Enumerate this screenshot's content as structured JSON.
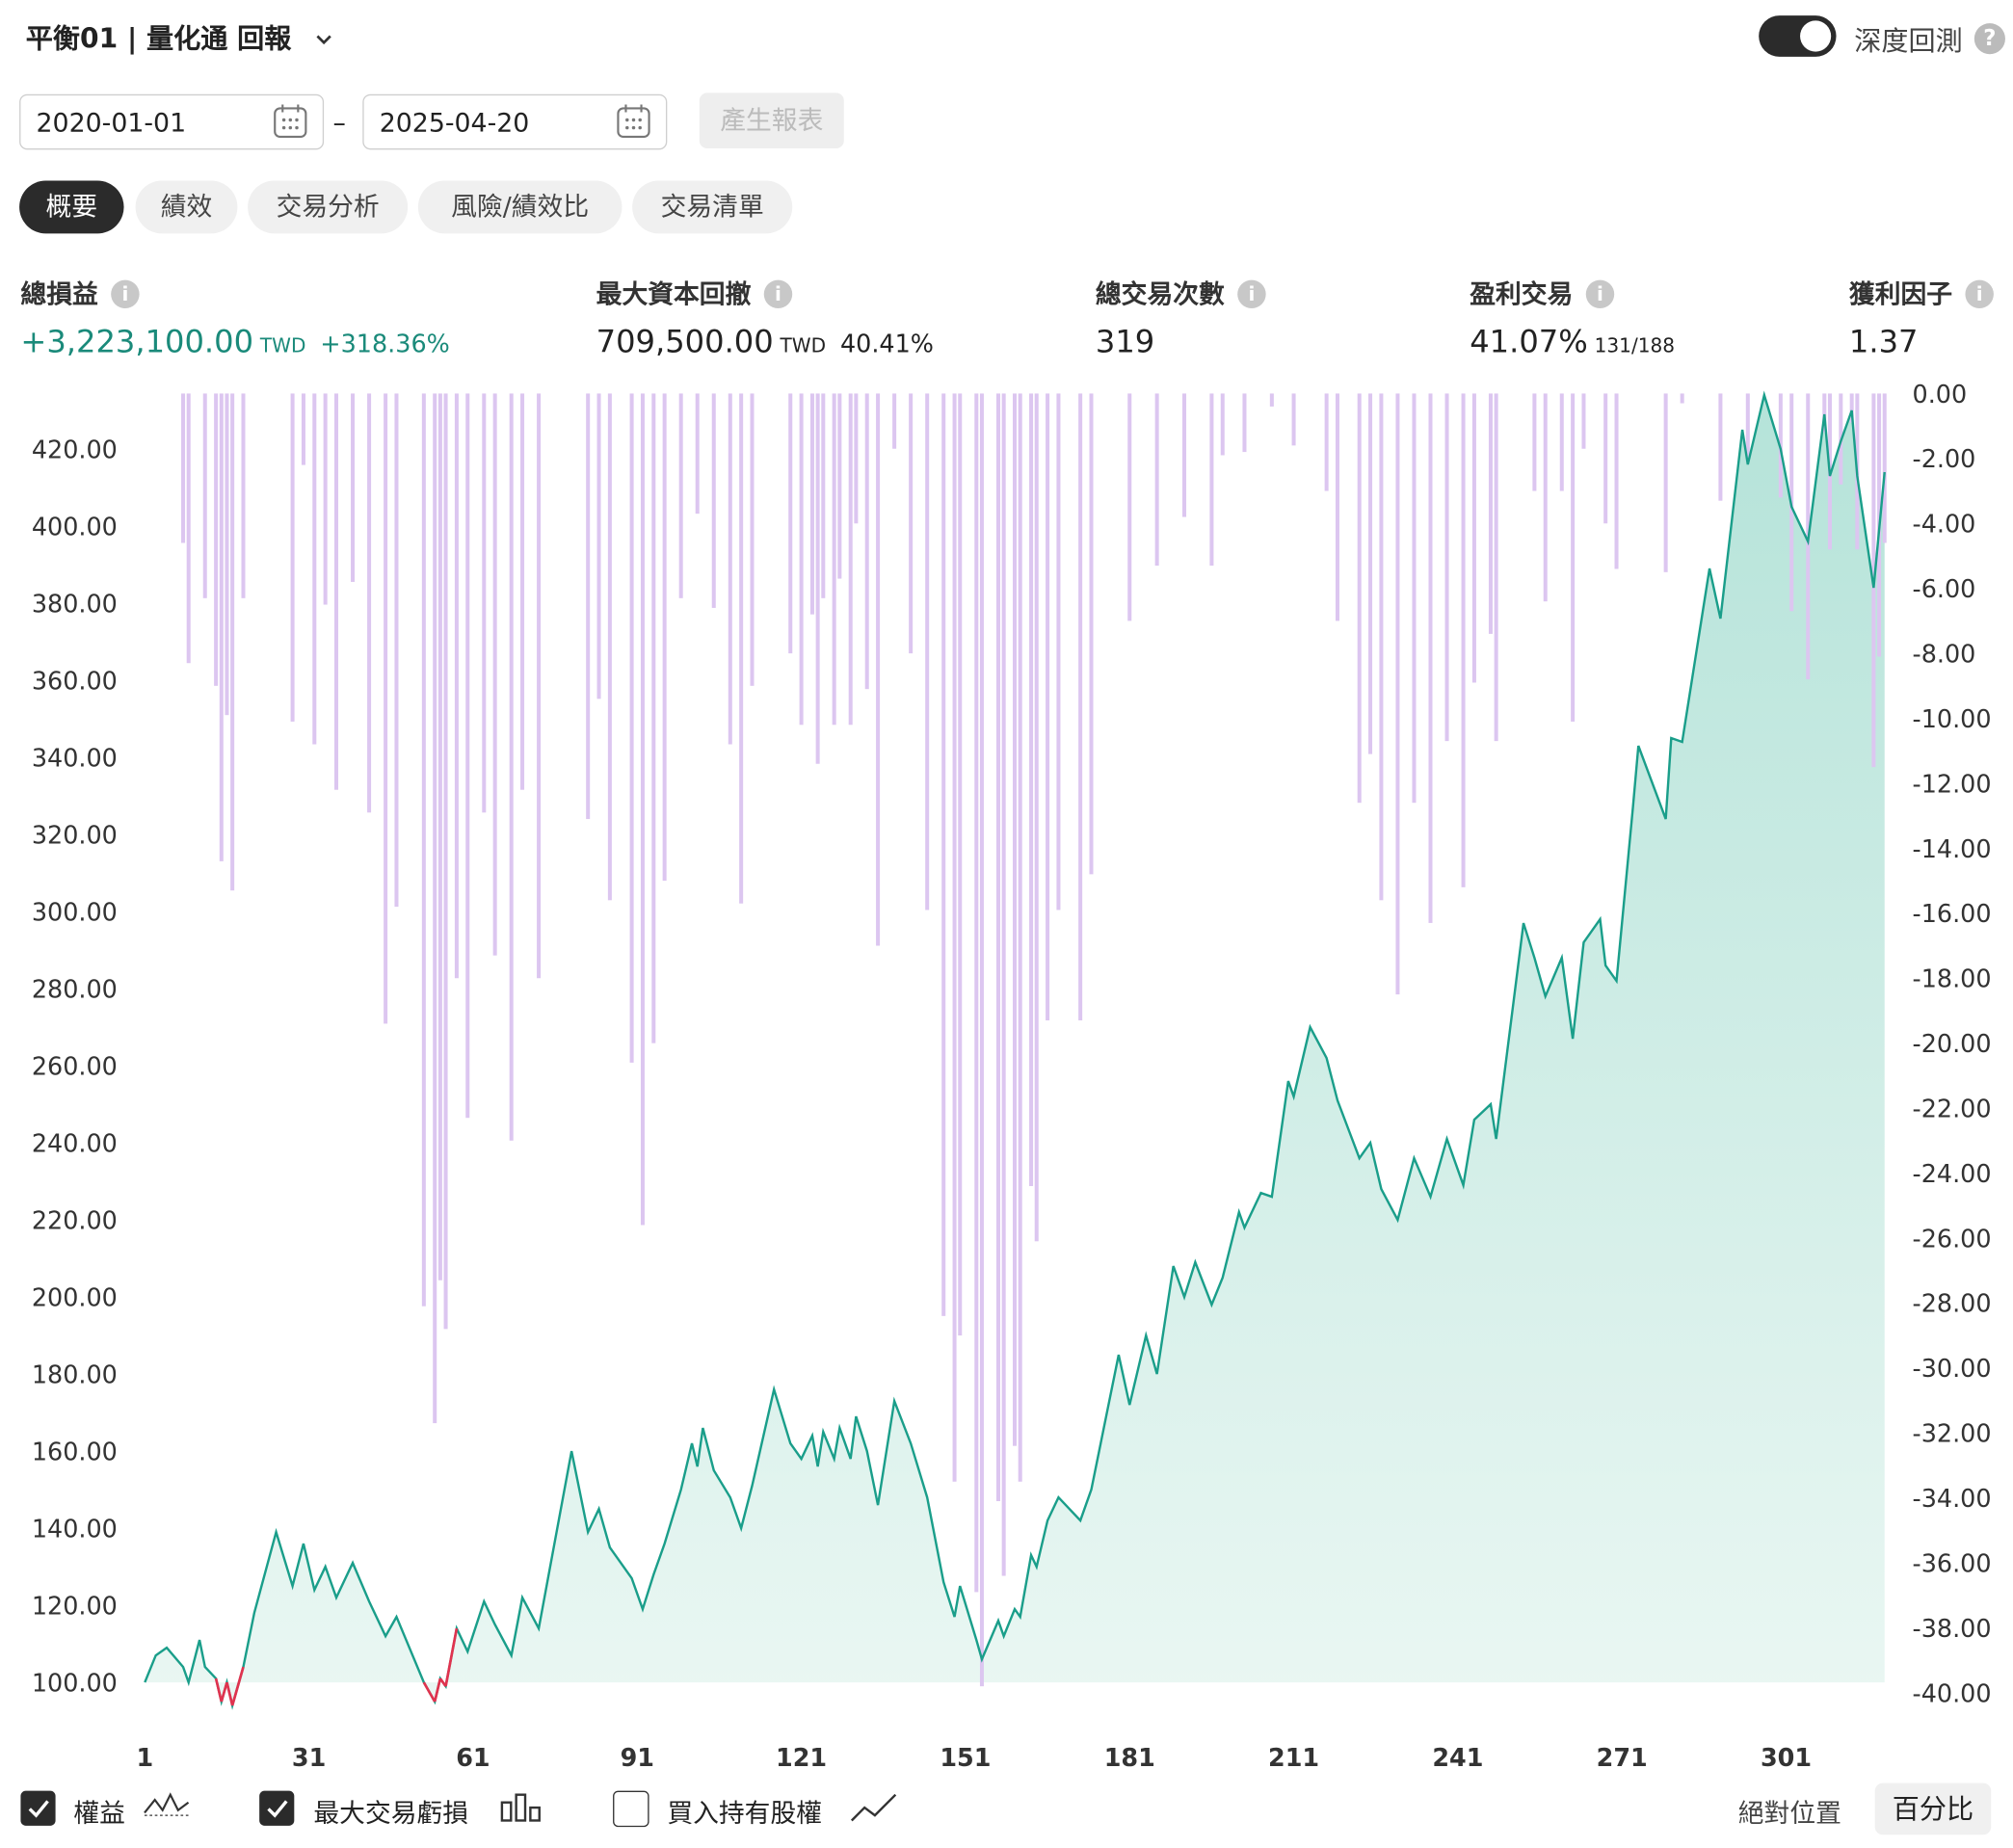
{
  "header": {
    "title": "平衡01 | 量化通 回報",
    "toggle_label": "深度回測",
    "toggle_on": true
  },
  "controls": {
    "start_date": "2020-01-01",
    "separator": "–",
    "end_date": "2025-04-20",
    "button": "產生報表"
  },
  "tabs": [
    "概要",
    "績效",
    "交易分析",
    "風險/績效比",
    "交易清單"
  ],
  "stats": [
    {
      "label": "總損益",
      "value": "+3,223,100.00",
      "unit": "TWD",
      "extra": "+318.36%"
    },
    {
      "label": "最大資本回撤",
      "value": "709,500.00",
      "unit": "TWD",
      "extra": "40.41%"
    },
    {
      "label": "總交易次數",
      "value": "319"
    },
    {
      "label": "盈利交易",
      "value": "41.07%",
      "extra": "131/188"
    },
    {
      "label": "獲利因子",
      "value": "1.37"
    }
  ],
  "legend_extra": {
    "label": "買入持有股權",
    "checked": false
  },
  "view_modes": [
    "絕對位置",
    "百分比"
  ],
  "chart_data": {
    "type": "line",
    "x": [
      1,
      3,
      5,
      8,
      9,
      11,
      12,
      14,
      15,
      16,
      17,
      19,
      21,
      25,
      28,
      30,
      32,
      34,
      36,
      39,
      42,
      45,
      47,
      52,
      54,
      55,
      56,
      58,
      60,
      63,
      65,
      68,
      70,
      73,
      79,
      82,
      84,
      86,
      90,
      92,
      94,
      96,
      99,
      101,
      102,
      103,
      105,
      108,
      110,
      112,
      116,
      119,
      121,
      123,
      124,
      125,
      127,
      128,
      130,
      131,
      133,
      135,
      138,
      141,
      144,
      147,
      149,
      150,
      153,
      154,
      157,
      158,
      160,
      161,
      163,
      164,
      166,
      168,
      172,
      174,
      179,
      181,
      184,
      186,
      189,
      191,
      193,
      196,
      198,
      201,
      202,
      205,
      207,
      210,
      211,
      214,
      217,
      219,
      223,
      225,
      227,
      230,
      233,
      236,
      239,
      242,
      244,
      247,
      248,
      253,
      255,
      257,
      260,
      262,
      264,
      267,
      268,
      270,
      273,
      274,
      279,
      280,
      282,
      287,
      289,
      293,
      294,
      297,
      300,
      302,
      305,
      308,
      309,
      311,
      313,
      314,
      317,
      318,
      319
    ],
    "series": [
      {
        "name": "權益",
        "type": "line",
        "color": "#1a9e8a",
        "negative_color": "#e0334f",
        "checked": true,
        "values": [
          100,
          107,
          109,
          104,
          100,
          111,
          104,
          101,
          95,
          100,
          94,
          104,
          118,
          139,
          125,
          136,
          124,
          130,
          122,
          131,
          121,
          112,
          117,
          100,
          95,
          101,
          99,
          114,
          108,
          121,
          115,
          107,
          122,
          114,
          160,
          139,
          145,
          135,
          127,
          119,
          128,
          136,
          150,
          162,
          156,
          166,
          155,
          148,
          140,
          151,
          176,
          162,
          158,
          164,
          156,
          165,
          158,
          166,
          158,
          169,
          160,
          146,
          173,
          162,
          148,
          126,
          117,
          125,
          111,
          106,
          116,
          112,
          119,
          117,
          133,
          130,
          142,
          148,
          142,
          150,
          185,
          172,
          190,
          180,
          208,
          200,
          209,
          198,
          205,
          222,
          218,
          227,
          226,
          256,
          252,
          270,
          262,
          251,
          236,
          240,
          228,
          220,
          236,
          226,
          241,
          229,
          246,
          250,
          241,
          297,
          288,
          278,
          288,
          267,
          292,
          298,
          286,
          282,
          327,
          343,
          324,
          345,
          344,
          389,
          376,
          425,
          416,
          434,
          420,
          405,
          396,
          429,
          413,
          422,
          430,
          413,
          384,
          399,
          414
        ]
      },
      {
        "name": "最大交易虧損",
        "type": "bar",
        "axis": "y2",
        "color": "#dcc6f0",
        "checked": true,
        "values": [
          0,
          0,
          0,
          -4.6,
          -8.3,
          0,
          -6.3,
          -9,
          -14.4,
          -9.9,
          -15.3,
          -6.3,
          0,
          0,
          -10.1,
          -2.2,
          -10.8,
          -6.5,
          -12.2,
          -5.8,
          -12.9,
          -19.4,
          -15.8,
          -28.1,
          -31.7,
          -27.3,
          -28.8,
          -18,
          -22.3,
          -12.9,
          -17.3,
          -23,
          -12.2,
          -18,
          0,
          -13.1,
          -9.4,
          -15.6,
          -20.6,
          -25.6,
          -20,
          -15,
          -6.3,
          0,
          -3.7,
          0,
          -6.6,
          -10.8,
          -15.7,
          -9,
          0,
          -8,
          -10.2,
          -6.8,
          -11.4,
          -6.3,
          -10.2,
          -5.7,
          -10.2,
          -4,
          -9.1,
          -17,
          -1.7,
          -8,
          -15.9,
          -28.4,
          -33.5,
          -29,
          -36.9,
          -39.8,
          -34.1,
          -36.4,
          -32.4,
          -33.5,
          -24.4,
          -26.1,
          -19.3,
          -15.9,
          -19.3,
          -14.8,
          0,
          -7,
          0,
          -5.3,
          0,
          -3.8,
          0,
          -5.3,
          -1.9,
          0,
          -1.8,
          0,
          -0.4,
          0,
          -1.6,
          0,
          -3,
          -7,
          -12.6,
          -11.1,
          -15.6,
          -18.5,
          -12.6,
          -16.3,
          -10.7,
          -15.2,
          -8.9,
          -7.4,
          -10.7,
          0,
          -3,
          -6.4,
          -3,
          -10.1,
          -1.7,
          0,
          -4,
          -5.4,
          0,
          0,
          -5.5,
          0,
          -0.3,
          0,
          -3.3,
          0,
          -2.1,
          0,
          -3.2,
          -6.7,
          -8.8,
          -1.2,
          -4.8,
          -2.8,
          -0.9,
          -4.8,
          -11.5,
          -8.1,
          -4.6
        ]
      }
    ],
    "xlim": [
      0,
      320.3
    ],
    "xticks": [
      1,
      31,
      61,
      91,
      121,
      151,
      181,
      211,
      241,
      271,
      301
    ],
    "ylim": [
      97.3,
      434.4
    ],
    "yticks": [
      {
        "value": 100,
        "label": "100.00"
      },
      {
        "value": 120,
        "label": "120.00"
      },
      {
        "value": 140,
        "label": "140.00"
      },
      {
        "value": 160,
        "label": "160.00"
      },
      {
        "value": 180,
        "label": "180.00"
      },
      {
        "value": 200,
        "label": "200.00"
      },
      {
        "value": 220,
        "label": "220.00"
      },
      {
        "value": 240,
        "label": "240.00"
      },
      {
        "value": 260,
        "label": "260.00"
      },
      {
        "value": 280,
        "label": "280.00"
      },
      {
        "value": 300,
        "label": "300.00"
      },
      {
        "value": 320,
        "label": "320.00"
      },
      {
        "value": 340,
        "label": "340.00"
      },
      {
        "value": 360,
        "label": "360.00"
      },
      {
        "value": 380,
        "label": "380.00"
      },
      {
        "value": 400,
        "label": "400.00"
      },
      {
        "value": 420,
        "label": "420.00"
      }
    ],
    "y2lim": [
      -40,
      0
    ],
    "y2ticks": [
      {
        "value": 0,
        "label": "0.00"
      },
      {
        "value": -2,
        "label": "-2.00"
      },
      {
        "value": -4,
        "label": "-4.00"
      },
      {
        "value": -6,
        "label": "-6.00"
      },
      {
        "value": -8,
        "label": "-8.00"
      },
      {
        "value": -10,
        "label": "-10.00"
      },
      {
        "value": -12,
        "label": "-12.00"
      },
      {
        "value": -14,
        "label": "-14.00"
      },
      {
        "value": -16,
        "label": "-16.00"
      },
      {
        "value": -18,
        "label": "-18.00"
      },
      {
        "value": -20,
        "label": "-20.00"
      },
      {
        "value": -22,
        "label": "-22.00"
      },
      {
        "value": -24,
        "label": "-24.00"
      },
      {
        "value": -26,
        "label": "-26.00"
      },
      {
        "value": -28,
        "label": "-28.00"
      },
      {
        "value": -30,
        "label": "-30.00"
      },
      {
        "value": -32,
        "label": "-32.00"
      },
      {
        "value": -34,
        "label": "-34.00"
      },
      {
        "value": -36,
        "label": "-36.00"
      },
      {
        "value": -38,
        "label": "-38.00"
      },
      {
        "value": -40,
        "label": "-40.00"
      }
    ],
    "grid": false
  }
}
